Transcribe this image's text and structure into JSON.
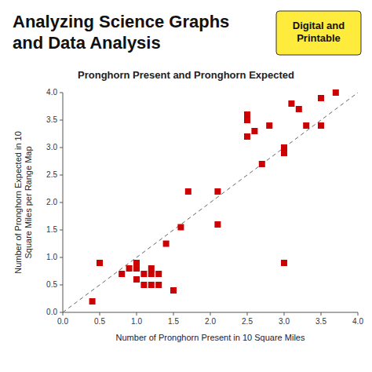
{
  "chart_data": {
    "type": "scatter",
    "title": "Analyzing Science Graphs\nand Data Analysis",
    "subtitle": "Pronghorn Present and Pronghorn Expected",
    "xlabel": "Number of Pronghorn Present in 10 Square Miles",
    "ylabel": "Number of Pronghorn Expected in 10\nSquare Miles per Range Map",
    "annotations": [
      "Digital and\nPrintable"
    ],
    "x": [
      0.4,
      0.5,
      0.8,
      0.9,
      1.0,
      1.0,
      1.0,
      1.1,
      1.1,
      1.2,
      1.2,
      1.2,
      1.3,
      1.3,
      1.4,
      1.5,
      1.6,
      1.7,
      2.1,
      2.1,
      2.5,
      2.5,
      2.5,
      2.6,
      2.7,
      2.8,
      3.0,
      3.0,
      3.1,
      3.2,
      3.3,
      3.5,
      3.5,
      3.7,
      3.0
    ],
    "values": [
      0.2,
      0.9,
      0.7,
      0.8,
      0.8,
      0.6,
      0.9,
      0.5,
      0.7,
      0.5,
      0.7,
      0.8,
      0.5,
      0.7,
      1.25,
      0.4,
      1.55,
      2.2,
      2.2,
      1.6,
      3.2,
      3.5,
      3.6,
      3.3,
      2.7,
      3.4,
      2.9,
      3.0,
      3.8,
      3.7,
      3.4,
      3.9,
      3.4,
      4.0,
      0.9
    ],
    "color": "#cc0000",
    "marker": "square",
    "xlim": [
      0,
      4.0
    ],
    "ylim": [
      0,
      4.0
    ],
    "xticks": [
      {
        "value": 0,
        "label": "0.0"
      },
      0.5,
      {
        "value": 1.0,
        "label": "1.0"
      },
      1.5,
      {
        "value": 2.0,
        "label": "2.0"
      },
      2.5,
      {
        "value": 3.0,
        "label": "3.0"
      },
      3.5,
      {
        "value": 4.0,
        "label": "4.0"
      }
    ],
    "yticks": [
      {
        "value": 0,
        "label": "0.0"
      },
      0.5,
      {
        "value": 1.0,
        "label": "1.0"
      },
      1.5,
      {
        "value": 2.0,
        "label": "2.0"
      },
      2.5,
      {
        "value": 3.0,
        "label": "3.0"
      },
      3.5,
      {
        "value": 4.0,
        "label": "4.0"
      }
    ],
    "grid": false
  }
}
